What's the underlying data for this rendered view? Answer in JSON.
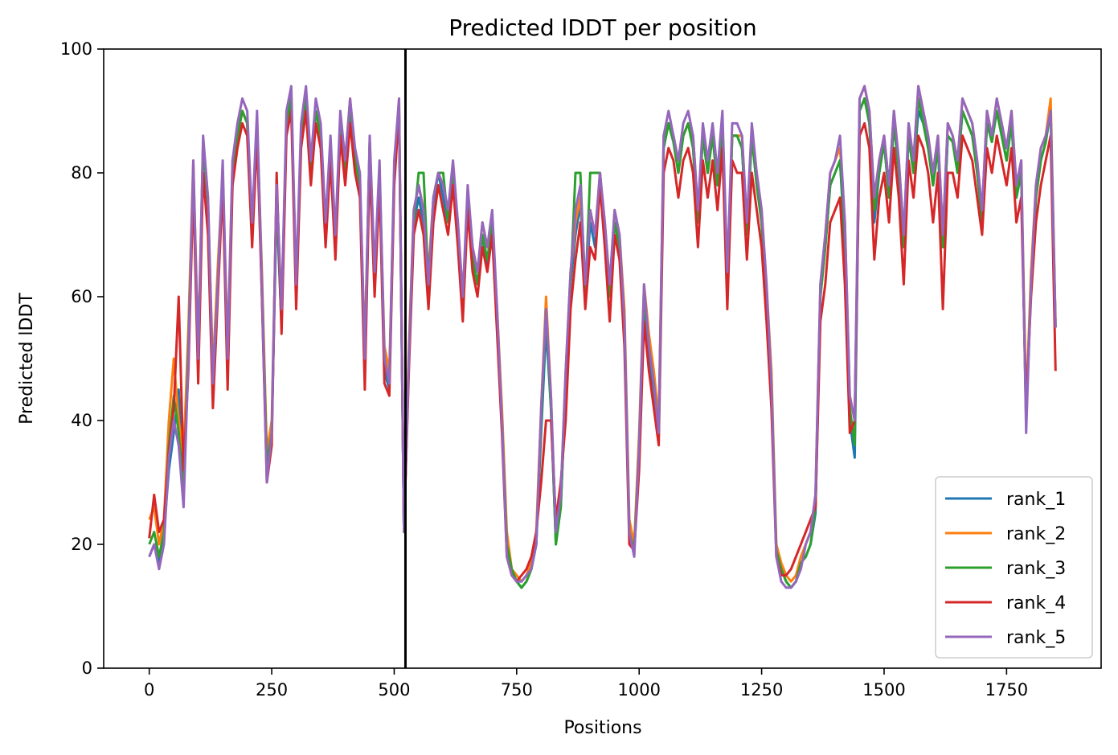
{
  "chart_data": {
    "type": "line",
    "title": "Predicted lDDT per position",
    "xlabel": "Positions",
    "ylabel": "Predicted lDDT",
    "xlim": [
      -93,
      1943
    ],
    "ylim": [
      0,
      100
    ],
    "xticks": [
      0,
      250,
      500,
      750,
      1000,
      1250,
      1500,
      1750
    ],
    "yticks": [
      0,
      20,
      40,
      60,
      80,
      100
    ],
    "grid": false,
    "legend_position": "lower-right",
    "vline_x": 523,
    "series_colors": [
      "#1f77b4",
      "#ff7f0e",
      "#2ca02c",
      "#d62728",
      "#9467bd"
    ],
    "x": [
      0,
      10,
      20,
      30,
      40,
      50,
      60,
      70,
      80,
      90,
      100,
      110,
      120,
      130,
      140,
      150,
      160,
      170,
      180,
      190,
      200,
      210,
      220,
      230,
      240,
      250,
      260,
      270,
      280,
      290,
      300,
      310,
      320,
      330,
      340,
      350,
      360,
      370,
      380,
      390,
      400,
      410,
      420,
      430,
      440,
      450,
      460,
      470,
      480,
      490,
      500,
      510,
      520,
      530,
      540,
      550,
      560,
      570,
      580,
      590,
      600,
      610,
      620,
      630,
      640,
      650,
      660,
      670,
      680,
      690,
      700,
      710,
      720,
      730,
      740,
      750,
      760,
      770,
      780,
      790,
      800,
      810,
      820,
      830,
      840,
      850,
      860,
      870,
      880,
      890,
      900,
      910,
      920,
      930,
      940,
      950,
      960,
      970,
      980,
      990,
      1000,
      1010,
      1020,
      1030,
      1040,
      1050,
      1060,
      1070,
      1080,
      1090,
      1100,
      1110,
      1120,
      1130,
      1140,
      1150,
      1160,
      1170,
      1180,
      1190,
      1200,
      1210,
      1220,
      1230,
      1240,
      1250,
      1260,
      1270,
      1280,
      1290,
      1300,
      1310,
      1320,
      1330,
      1340,
      1350,
      1360,
      1370,
      1380,
      1390,
      1400,
      1410,
      1420,
      1430,
      1440,
      1450,
      1460,
      1470,
      1480,
      1490,
      1500,
      1510,
      1520,
      1530,
      1540,
      1550,
      1560,
      1570,
      1580,
      1590,
      1600,
      1610,
      1620,
      1630,
      1640,
      1650,
      1660,
      1670,
      1680,
      1690,
      1700,
      1710,
      1720,
      1730,
      1740,
      1750,
      1760,
      1770,
      1780,
      1790,
      1800,
      1810,
      1820,
      1830,
      1840,
      1850
    ],
    "series": [
      {
        "name": "rank_1",
        "values": [
          18,
          20,
          17,
          22,
          32,
          38,
          45,
          30,
          50,
          80,
          48,
          85,
          75,
          45,
          62,
          80,
          48,
          80,
          86,
          90,
          88,
          70,
          88,
          60,
          32,
          38,
          75,
          55,
          88,
          92,
          60,
          86,
          92,
          80,
          90,
          86,
          70,
          84,
          68,
          88,
          80,
          90,
          82,
          78,
          48,
          85,
          62,
          80,
          48,
          45,
          80,
          90,
          22,
          50,
          72,
          76,
          72,
          60,
          75,
          80,
          76,
          72,
          80,
          70,
          58,
          75,
          66,
          62,
          70,
          65,
          72,
          55,
          40,
          20,
          16,
          14,
          13,
          14,
          16,
          20,
          38,
          55,
          42,
          20,
          26,
          45,
          62,
          70,
          75,
          60,
          72,
          68,
          80,
          70,
          60,
          72,
          68,
          55,
          22,
          19,
          35,
          60,
          50,
          45,
          38,
          84,
          88,
          85,
          80,
          86,
          88,
          84,
          72,
          86,
          80,
          86,
          78,
          88,
          62,
          86,
          86,
          84,
          70,
          86,
          78,
          72,
          60,
          45,
          19,
          16,
          14,
          13,
          14,
          17,
          18,
          20,
          25,
          60,
          68,
          78,
          80,
          82,
          68,
          40,
          34,
          90,
          92,
          88,
          72,
          80,
          85,
          76,
          88,
          80,
          68,
          86,
          80,
          90,
          88,
          84,
          78,
          84,
          68,
          86,
          85,
          80,
          90,
          88,
          86,
          80,
          72,
          88,
          85,
          90,
          86,
          82,
          88,
          76,
          80,
          40,
          62,
          76,
          82,
          85,
          90,
          55
        ]
      },
      {
        "name": "rank_2",
        "values": [
          24,
          26,
          20,
          24,
          40,
          50,
          40,
          34,
          55,
          82,
          52,
          85,
          76,
          48,
          65,
          80,
          52,
          82,
          86,
          90,
          88,
          72,
          88,
          64,
          35,
          40,
          78,
          58,
          88,
          92,
          62,
          86,
          92,
          80,
          90,
          86,
          72,
          84,
          70,
          88,
          82,
          92,
          82,
          78,
          52,
          85,
          64,
          80,
          52,
          48,
          80,
          92,
          24,
          52,
          74,
          78,
          74,
          64,
          76,
          80,
          78,
          74,
          80,
          72,
          60,
          76,
          68,
          64,
          72,
          68,
          72,
          58,
          42,
          22,
          16,
          15,
          14,
          15,
          17,
          22,
          42,
          60,
          44,
          22,
          28,
          48,
          64,
          72,
          76,
          62,
          74,
          70,
          80,
          72,
          62,
          74,
          70,
          58,
          24,
          20,
          38,
          62,
          54,
          48,
          40,
          86,
          88,
          86,
          82,
          86,
          88,
          86,
          74,
          86,
          82,
          86,
          80,
          88,
          64,
          86,
          86,
          86,
          72,
          86,
          80,
          74,
          62,
          48,
          20,
          17,
          15,
          14,
          15,
          18,
          20,
          22,
          28,
          62,
          70,
          80,
          82,
          84,
          72,
          44,
          40,
          92,
          94,
          90,
          76,
          82,
          86,
          78,
          90,
          82,
          70,
          88,
          82,
          94,
          90,
          86,
          80,
          86,
          70,
          88,
          86,
          82,
          92,
          90,
          88,
          82,
          74,
          90,
          86,
          92,
          88,
          84,
          90,
          78,
          82,
          42,
          64,
          78,
          84,
          86,
          92,
          56
        ]
      },
      {
        "name": "rank_3",
        "values": [
          20,
          22,
          18,
          22,
          36,
          44,
          38,
          28,
          52,
          80,
          50,
          84,
          75,
          46,
          62,
          80,
          50,
          80,
          86,
          90,
          88,
          70,
          88,
          62,
          33,
          38,
          76,
          56,
          88,
          92,
          60,
          86,
          92,
          80,
          90,
          86,
          70,
          84,
          68,
          88,
          80,
          90,
          82,
          78,
          50,
          85,
          62,
          80,
          50,
          46,
          80,
          90,
          22,
          50,
          72,
          80,
          80,
          62,
          76,
          80,
          80,
          72,
          80,
          70,
          58,
          76,
          66,
          62,
          70,
          66,
          72,
          56,
          40,
          20,
          16,
          14,
          13,
          14,
          16,
          20,
          40,
          58,
          42,
          20,
          26,
          46,
          62,
          80,
          80,
          60,
          80,
          80,
          80,
          70,
          60,
          72,
          68,
          56,
          22,
          19,
          36,
          60,
          52,
          46,
          38,
          84,
          88,
          85,
          80,
          86,
          88,
          84,
          72,
          86,
          80,
          86,
          78,
          88,
          62,
          86,
          86,
          84,
          70,
          86,
          78,
          72,
          60,
          46,
          19,
          16,
          14,
          13,
          14,
          17,
          18,
          20,
          26,
          60,
          68,
          78,
          80,
          82,
          70,
          42,
          36,
          90,
          92,
          88,
          74,
          80,
          85,
          76,
          88,
          80,
          68,
          86,
          80,
          92,
          88,
          84,
          78,
          84,
          68,
          86,
          85,
          80,
          90,
          88,
          86,
          80,
          72,
          88,
          85,
          90,
          86,
          82,
          88,
          76,
          80,
          40,
          62,
          76,
          82,
          85,
          90,
          55
        ]
      },
      {
        "name": "rank_4",
        "values": [
          21,
          28,
          22,
          24,
          35,
          42,
          60,
          32,
          48,
          78,
          46,
          80,
          70,
          42,
          60,
          78,
          45,
          78,
          84,
          88,
          86,
          68,
          86,
          60,
          30,
          36,
          80,
          54,
          86,
          90,
          58,
          84,
          90,
          78,
          88,
          84,
          68,
          82,
          66,
          86,
          78,
          88,
          80,
          76,
          45,
          82,
          60,
          78,
          46,
          44,
          78,
          90,
          22,
          48,
          70,
          74,
          70,
          58,
          72,
          78,
          74,
          70,
          78,
          68,
          56,
          74,
          64,
          60,
          68,
          64,
          70,
          54,
          38,
          18,
          15,
          14,
          15,
          16,
          18,
          22,
          30,
          40,
          40,
          24,
          30,
          40,
          58,
          66,
          72,
          58,
          68,
          66,
          78,
          68,
          56,
          70,
          66,
          52,
          20,
          19,
          32,
          56,
          48,
          42,
          36,
          80,
          84,
          82,
          76,
          82,
          84,
          80,
          68,
          82,
          76,
          82,
          74,
          84,
          58,
          82,
          80,
          80,
          66,
          80,
          74,
          68,
          56,
          42,
          18,
          15,
          15,
          16,
          18,
          20,
          22,
          24,
          26,
          56,
          62,
          72,
          74,
          76,
          62,
          38,
          40,
          86,
          88,
          84,
          66,
          76,
          80,
          72,
          84,
          76,
          62,
          82,
          76,
          86,
          84,
          80,
          72,
          80,
          58,
          80,
          80,
          76,
          86,
          84,
          82,
          76,
          70,
          84,
          80,
          86,
          82,
          78,
          84,
          72,
          76,
          42,
          60,
          72,
          78,
          82,
          86,
          48
        ]
      },
      {
        "name": "rank_5",
        "values": [
          18,
          20,
          16,
          20,
          34,
          40,
          36,
          26,
          50,
          82,
          50,
          86,
          76,
          46,
          62,
          82,
          50,
          82,
          88,
          92,
          90,
          72,
          90,
          62,
          30,
          38,
          78,
          58,
          90,
          94,
          62,
          88,
          94,
          82,
          92,
          88,
          72,
          86,
          70,
          90,
          82,
          92,
          84,
          80,
          50,
          86,
          64,
          82,
          50,
          46,
          82,
          92,
          22,
          50,
          74,
          78,
          74,
          62,
          76,
          80,
          78,
          74,
          82,
          72,
          60,
          78,
          68,
          64,
          72,
          68,
          74,
          58,
          40,
          18,
          15,
          14,
          14,
          15,
          16,
          20,
          42,
          58,
          44,
          22,
          28,
          48,
          64,
          74,
          78,
          62,
          74,
          70,
          80,
          72,
          62,
          74,
          70,
          56,
          22,
          18,
          36,
          62,
          52,
          46,
          38,
          86,
          90,
          86,
          82,
          88,
          90,
          86,
          74,
          88,
          82,
          88,
          80,
          90,
          64,
          88,
          88,
          86,
          72,
          88,
          80,
          74,
          62,
          46,
          18,
          14,
          13,
          13,
          14,
          16,
          20,
          22,
          28,
          62,
          70,
          80,
          82,
          86,
          72,
          44,
          40,
          92,
          94,
          90,
          76,
          82,
          86,
          78,
          90,
          82,
          70,
          88,
          82,
          94,
          90,
          86,
          80,
          86,
          70,
          88,
          86,
          82,
          92,
          90,
          88,
          82,
          74,
          90,
          86,
          92,
          88,
          84,
          90,
          78,
          82,
          38,
          62,
          78,
          84,
          86,
          90,
          55
        ]
      }
    ]
  }
}
